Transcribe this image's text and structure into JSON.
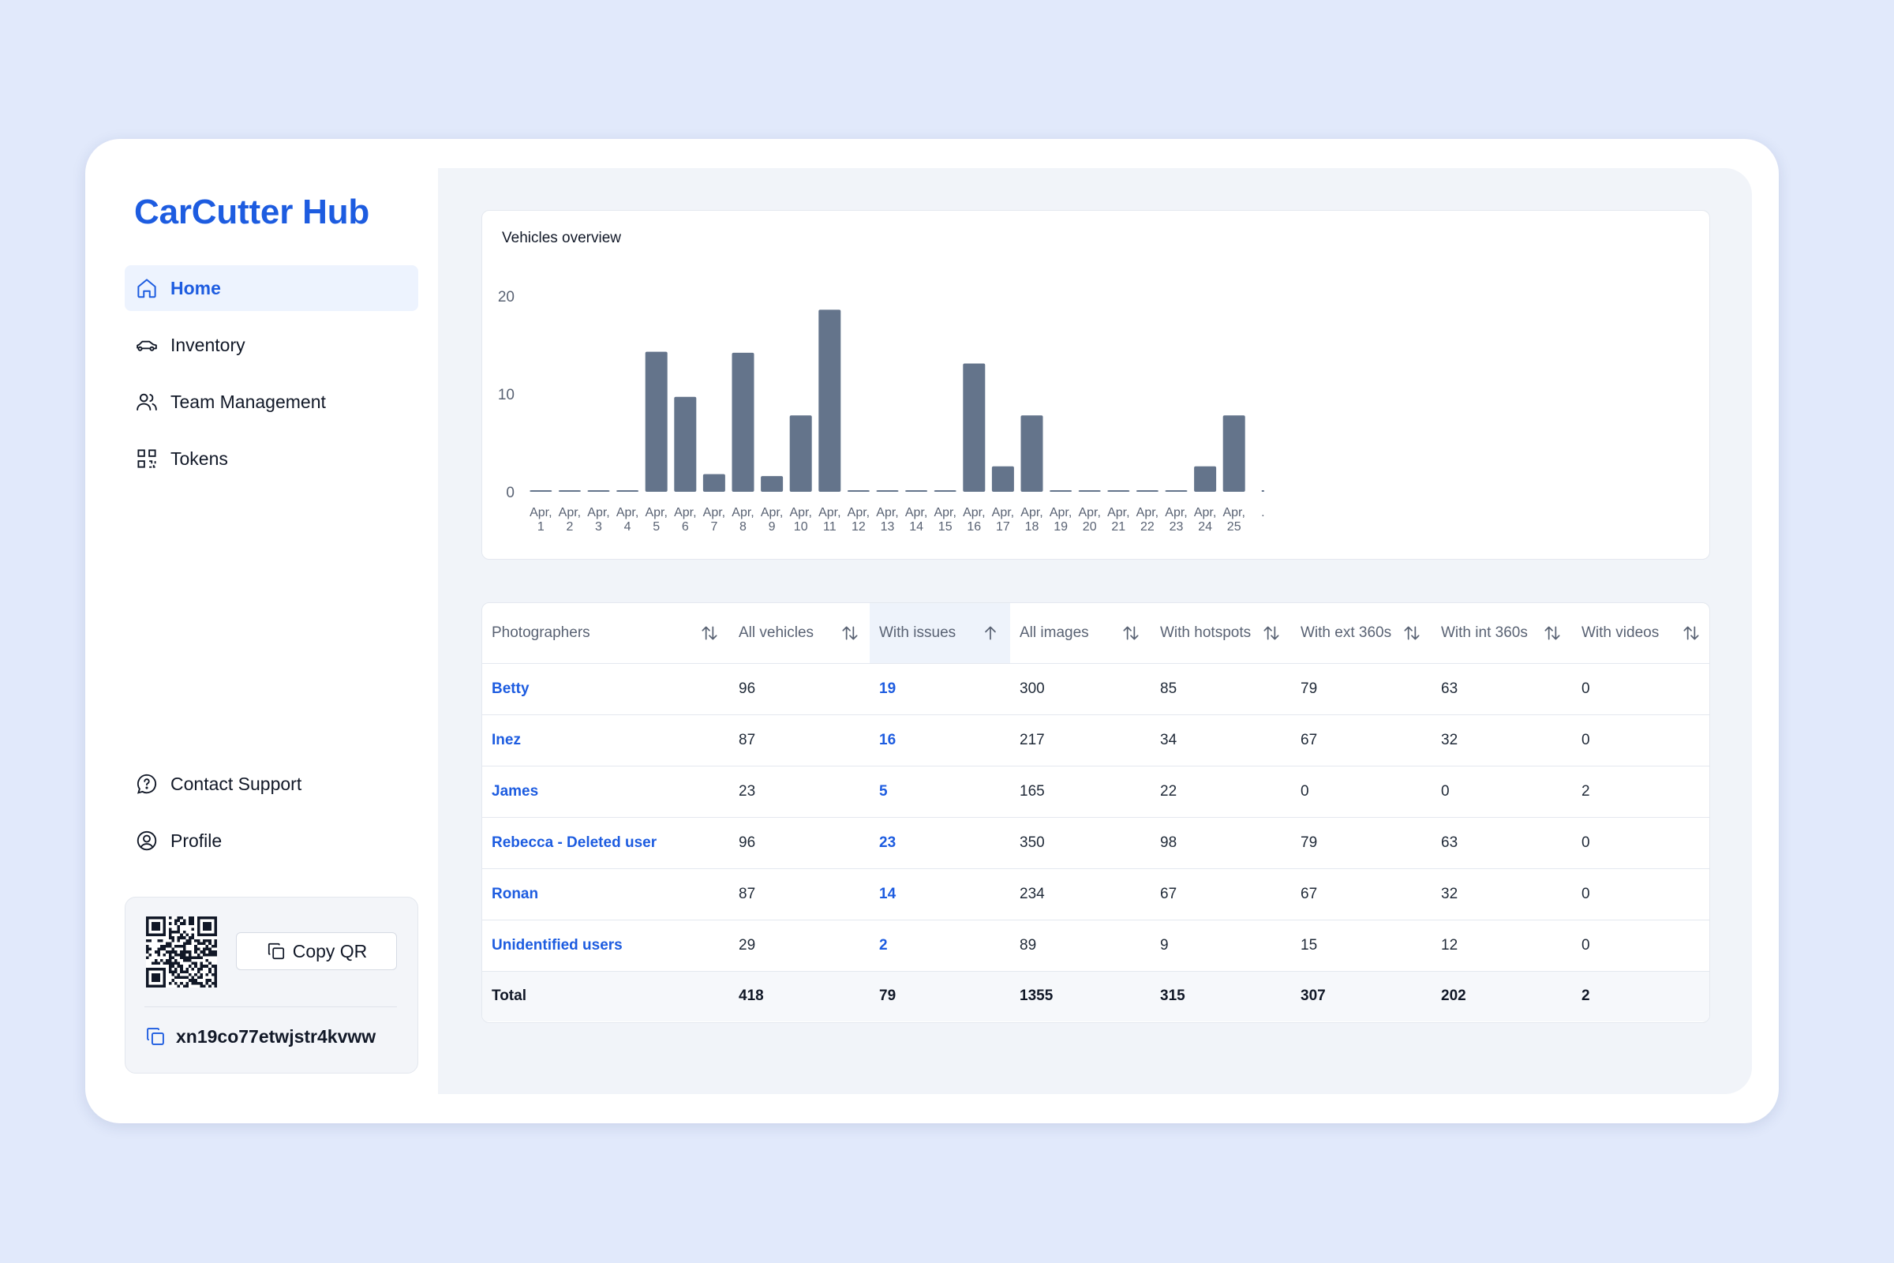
{
  "brand": "CarCutter Hub",
  "nav": [
    {
      "label": "Home",
      "icon": "home-icon",
      "active": true
    },
    {
      "label": "Inventory",
      "icon": "car-icon"
    },
    {
      "label": "Team Management",
      "icon": "users-icon"
    },
    {
      "label": "Tokens",
      "icon": "qr-icon"
    }
  ],
  "nav_bottom": [
    {
      "label": "Contact Support",
      "icon": "support-chat-icon"
    },
    {
      "label": "Profile",
      "icon": "profile-icon"
    }
  ],
  "qr_card": {
    "copy_label": "Copy QR",
    "token": "xn19co77etwjstr4kvww"
  },
  "accent_color": "#1d5ce0",
  "bar_color": "#64748b",
  "chart_data": {
    "type": "bar",
    "title": "Vehicles overview",
    "categories": [
      "Apr, 1",
      "Apr, 2",
      "Apr, 3",
      "Apr, 4",
      "Apr, 5",
      "Apr, 6",
      "Apr, 7",
      "Apr, 8",
      "Apr, 9",
      "Apr, 10",
      "Apr, 11",
      "Apr, 12",
      "Apr, 13",
      "Apr, 14",
      "Apr, 15",
      "Apr, 16",
      "Apr, 17",
      "Apr, 18",
      "Apr, 19",
      "Apr, 20",
      "Apr, 21",
      "Apr, 22",
      "Apr, 23",
      "Apr, 24",
      "Apr, 25",
      "."
    ],
    "values": [
      0,
      0,
      0,
      0,
      14.3,
      9.7,
      1.8,
      14.2,
      1.6,
      7.8,
      18.6,
      0,
      0,
      0,
      0,
      13.1,
      2.6,
      7.8,
      0,
      0,
      0,
      0,
      0,
      2.6,
      7.8,
      0
    ],
    "yticks": [
      0,
      10,
      20
    ],
    "ylim": [
      0,
      20
    ],
    "xlabel": "",
    "ylabel": ""
  },
  "table": {
    "columns": [
      {
        "label": "Photographers",
        "sort": "none"
      },
      {
        "label": "All vehicles",
        "sort": "none"
      },
      {
        "label": "With issues",
        "sort": "asc"
      },
      {
        "label": "All images",
        "sort": "none"
      },
      {
        "label": "With hotspots",
        "sort": "none"
      },
      {
        "label": "With ext 360s",
        "sort": "none"
      },
      {
        "label": "With int 360s",
        "sort": "none"
      },
      {
        "label": "With videos",
        "sort": "none"
      }
    ],
    "rows": [
      [
        "Betty",
        "96",
        "19",
        "300",
        "85",
        "79",
        "63",
        "0"
      ],
      [
        "Inez",
        "87",
        "16",
        "217",
        "34",
        "67",
        "32",
        "0"
      ],
      [
        "James",
        "23",
        "5",
        "165",
        "22",
        "0",
        "0",
        "2"
      ],
      [
        "Rebecca - Deleted user",
        "96",
        "23",
        "350",
        "98",
        "79",
        "63",
        "0"
      ],
      [
        "Ronan",
        "87",
        "14",
        "234",
        "67",
        "67",
        "32",
        "0"
      ],
      [
        "Unidentified users",
        "29",
        "2",
        "89",
        "9",
        "15",
        "12",
        "0"
      ]
    ],
    "total": [
      "Total",
      "418",
      "79",
      "1355",
      "315",
      "307",
      "202",
      "2"
    ]
  }
}
